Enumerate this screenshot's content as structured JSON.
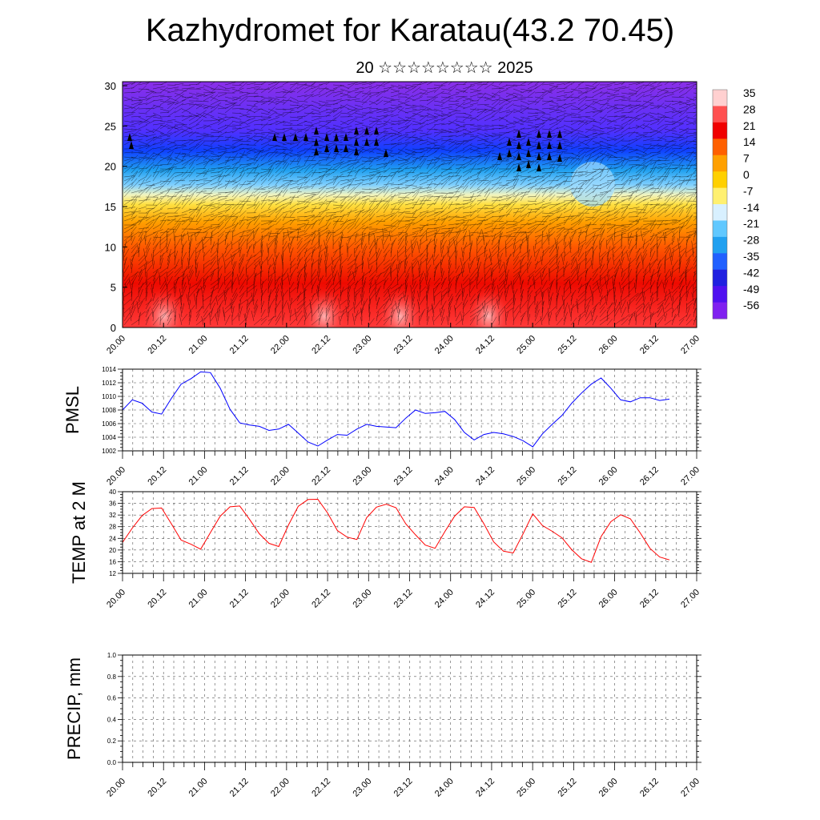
{
  "title": "Kazhydromet for Karatau(43.2 70.45)",
  "subtitle": "20 ☆☆☆☆☆☆☆☆ 2025",
  "colors": {
    "pmsl_line": "#0000ff",
    "temp_line": "#ff0000",
    "precip_line": "#006400",
    "frame": "#000000"
  },
  "chart_data": [
    {
      "type": "heatmap",
      "name": "cross-section",
      "x_ticks": [
        "20.00",
        "20.12",
        "21.00",
        "21.12",
        "22.00",
        "22.12",
        "23.00",
        "23.12",
        "24.00",
        "24.12",
        "25.00",
        "25.12",
        "26.00",
        "26.12",
        "27.00"
      ],
      "y_ticks": [
        0,
        5,
        10,
        15,
        20,
        25,
        30
      ],
      "ylim": [
        0,
        30.5
      ],
      "colorbar_labels": [
        "35",
        "28",
        "21",
        "14",
        "7",
        "0",
        "-7",
        "-14",
        "-21",
        "-28",
        "-35",
        "-42",
        "-49",
        "-56"
      ],
      "colorbar_colors": [
        "#ffd0d0",
        "#ff5050",
        "#f00000",
        "#ff6000",
        "#ffa000",
        "#ffd000",
        "#fff070",
        "#d8f0ff",
        "#60c8ff",
        "#20a0f0",
        "#2060ff",
        "#2020e0",
        "#5010f0",
        "#8020f0"
      ]
    },
    {
      "type": "line",
      "name": "pmsl",
      "ylabel": "PMSL",
      "ylim": [
        1002,
        1014
      ],
      "y_ticks": [
        1002,
        1004,
        1006,
        1008,
        1010,
        1012,
        1014
      ],
      "x_ticks": [
        "20.00",
        "20.12",
        "21.00",
        "21.12",
        "22.00",
        "22.12",
        "23.00",
        "23.12",
        "24.00",
        "24.12",
        "25.00",
        "25.12",
        "26.00",
        "26.12",
        "27.00"
      ],
      "values": [
        1008.0,
        1009.5,
        1009.0,
        1007.7,
        1007.4,
        1009.7,
        1011.8,
        1012.6,
        1013.6,
        1013.5,
        1011.2,
        1008.1,
        1006.1,
        1005.8,
        1005.6,
        1005.0,
        1005.2,
        1005.9,
        1004.6,
        1003.3,
        1002.7,
        1003.6,
        1004.4,
        1004.3,
        1005.2,
        1005.9,
        1005.6,
        1005.5,
        1005.4,
        1006.8,
        1008.0,
        1007.5,
        1007.6,
        1007.8,
        1006.6,
        1004.7,
        1003.6,
        1004.4,
        1004.7,
        1004.5,
        1004.1,
        1003.5,
        1002.6,
        1004.5,
        1005.9,
        1007.2,
        1009.0,
        1010.5,
        1011.8,
        1012.7,
        1011.2,
        1009.5,
        1009.2,
        1009.8,
        1009.8,
        1009.4,
        1009.6
      ]
    },
    {
      "type": "line",
      "name": "temp2m",
      "ylabel": "TEMP at 2 M",
      "ylim": [
        12,
        40
      ],
      "y_ticks": [
        12,
        16,
        20,
        24,
        28,
        32,
        36,
        40
      ],
      "x_ticks": [
        "20.00",
        "20.12",
        "21.00",
        "21.12",
        "22.00",
        "22.12",
        "23.00",
        "23.12",
        "24.00",
        "24.12",
        "25.00",
        "25.12",
        "26.00",
        "26.12",
        "27.00"
      ],
      "values": [
        22.6,
        27.5,
        31.8,
        34.2,
        34.4,
        29.0,
        23.4,
        22.0,
        20.3,
        26.0,
        31.6,
        34.8,
        35.1,
        30.5,
        25.6,
        22.3,
        21.2,
        28.6,
        35.0,
        37.3,
        37.4,
        32.7,
        26.7,
        24.4,
        23.6,
        31.1,
        34.7,
        35.7,
        34.5,
        29.0,
        25.2,
        21.7,
        20.6,
        26.3,
        31.6,
        34.8,
        34.6,
        29.0,
        22.8,
        19.6,
        19.0,
        25.5,
        32.4,
        28.4,
        26.4,
        24.2,
        20.1,
        17.0,
        15.8,
        24.6,
        29.7,
        32.1,
        30.7,
        25.9,
        20.6,
        17.6,
        16.6
      ]
    },
    {
      "type": "line",
      "name": "precip",
      "ylabel": "PRECIP, mm",
      "ylim": [
        0,
        1.0
      ],
      "y_ticks": [
        "0.0",
        "0.2",
        "0.4",
        "0.6",
        "0.8",
        "1.0"
      ],
      "x_ticks": [
        "20.00",
        "20.12",
        "21.00",
        "21.12",
        "22.00",
        "22.12",
        "23.00",
        "23.12",
        "24.00",
        "24.12",
        "25.00",
        "25.12",
        "26.00",
        "26.12",
        "27.00"
      ],
      "values": [
        0,
        0,
        0,
        0,
        0,
        0,
        0,
        0,
        0,
        0,
        0,
        0,
        0,
        0,
        0,
        0,
        0,
        0,
        0,
        0,
        0,
        0,
        0,
        0,
        0,
        0,
        0,
        0,
        0,
        0,
        0,
        0,
        0,
        0,
        0,
        0,
        0,
        0,
        0,
        0,
        0,
        0,
        0,
        0,
        0,
        0,
        0,
        0,
        0,
        0,
        0,
        0,
        0,
        0,
        0,
        0,
        0
      ]
    }
  ]
}
